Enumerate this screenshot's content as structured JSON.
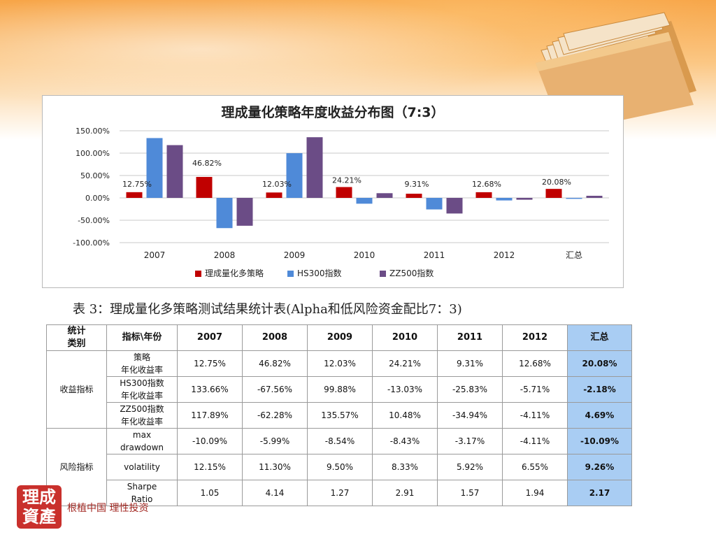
{
  "chart_data": {
    "type": "bar",
    "title": "理成量化策略年度收益分布图（7:3）",
    "categories": [
      "2007",
      "2008",
      "2009",
      "2010",
      "2011",
      "2012",
      "汇总"
    ],
    "series": [
      {
        "name": "理成量化多策略",
        "color": "#c00000",
        "values": [
          12.75,
          46.82,
          12.03,
          24.21,
          9.31,
          12.68,
          20.08
        ]
      },
      {
        "name": "HS300指数",
        "color": "#4f8ad8",
        "values": [
          133.66,
          -67.56,
          99.88,
          -13.03,
          -25.83,
          -5.71,
          -2.18
        ]
      },
      {
        "name": "ZZ500指数",
        "color": "#6b4c86",
        "values": [
          117.89,
          -62.28,
          135.57,
          10.48,
          -34.94,
          -4.11,
          4.69
        ]
      }
    ],
    "data_labels": [
      "12.75%",
      "46.82%",
      "12.03%",
      "24.21%",
      "9.31%",
      "12.68%",
      "20.08%"
    ],
    "y_ticks": [
      "150.00%",
      "100.00%",
      "50.00%",
      "0.00%",
      "-50.00%",
      "-100.00%"
    ],
    "ylim": [
      -100,
      150
    ],
    "grid": true,
    "legend_position": "bottom"
  },
  "caption": "表 3：理成量化多策略测试结果统计表(Alpha和低风险资金配比7：3)",
  "table": {
    "header": [
      "统计类别",
      "指标\\年份",
      "2007",
      "2008",
      "2009",
      "2010",
      "2011",
      "2012",
      "汇总"
    ],
    "header_cat_lines": [
      "统计",
      "类别"
    ],
    "groups": [
      {
        "category": "收益指标",
        "rows": [
          {
            "label_lines": [
              "策略",
              "年化收益率"
            ],
            "values": [
              "12.75%",
              "46.82%",
              "12.03%",
              "24.21%",
              "9.31%",
              "12.68%"
            ],
            "sum": "20.08%"
          },
          {
            "label_lines": [
              "HS300指数",
              "年化收益率"
            ],
            "values": [
              "133.66%",
              "-67.56%",
              "99.88%",
              "-13.03%",
              "-25.83%",
              "-5.71%"
            ],
            "sum": "-2.18%"
          },
          {
            "label_lines": [
              "ZZ500指数",
              "年化收益率"
            ],
            "values": [
              "117.89%",
              "-62.28%",
              "135.57%",
              "10.48%",
              "-34.94%",
              "-4.11%"
            ],
            "sum": "4.69%"
          }
        ]
      },
      {
        "category": "风险指标",
        "rows": [
          {
            "label_lines": [
              "max",
              "drawdown"
            ],
            "values": [
              "-10.09%",
              "-5.99%",
              "-8.54%",
              "-8.43%",
              "-3.17%",
              "-4.11%"
            ],
            "sum": "-10.09%"
          },
          {
            "label_lines": [
              "volatility"
            ],
            "values": [
              "12.15%",
              "11.30%",
              "9.50%",
              "8.33%",
              "5.92%",
              "6.55%"
            ],
            "sum": "9.26%"
          },
          {
            "label_lines": [
              "Sharpe",
              "Ratio"
            ],
            "values": [
              "1.05",
              "4.14",
              "1.27",
              "2.91",
              "1.57",
              "1.94"
            ],
            "sum": "2.17"
          }
        ]
      }
    ]
  },
  "logo_text": [
    "理成",
    "資產"
  ],
  "slogan": "根植中国 理性投资",
  "icons": {
    "folder": "folder-icon",
    "logo": "company-logo"
  }
}
